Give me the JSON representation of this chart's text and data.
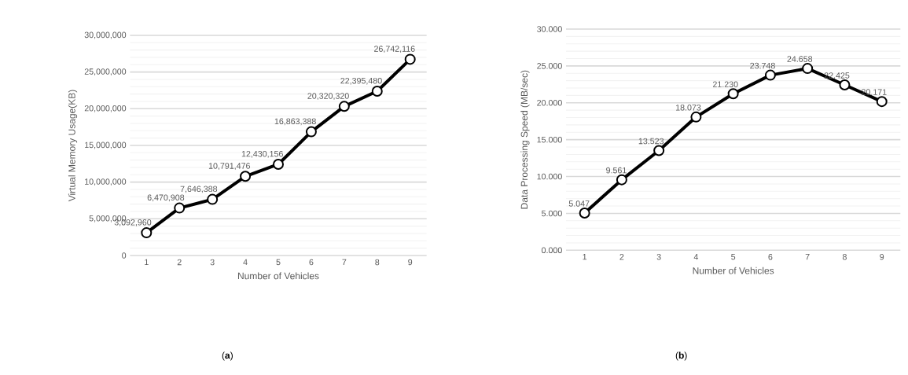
{
  "chart_data": [
    {
      "type": "line",
      "xlabel": "Number of Vehicles",
      "ylabel": "Virtual Memory Usage(KB)",
      "categories": [
        "1",
        "2",
        "3",
        "4",
        "5",
        "6",
        "7",
        "8",
        "9"
      ],
      "series": [
        {
          "color": "#000000",
          "values": [
            3092960,
            6470908,
            7646388,
            10791476,
            12430156,
            16863388,
            20320320,
            22395480,
            26742116
          ],
          "value_labels": [
            "3,092,960",
            "6,470,908",
            "7,646,388",
            "10,791,476",
            "12,430,156",
            "16,863,388",
            "20,320,320",
            "22,395,480",
            "26,742,116"
          ]
        }
      ],
      "ylim": [
        0,
        30000000
      ],
      "yticks": [
        0,
        {
          "value": 5000000,
          "label": "5,000,000"
        },
        {
          "value": 10000000,
          "label": "10,000,000"
        },
        {
          "value": 15000000,
          "label": "15,000,000"
        },
        {
          "value": 20000000,
          "label": "20,000,000"
        },
        {
          "value": 25000000,
          "label": "25,000,000"
        },
        {
          "value": 30000000,
          "label": "30,000,000"
        }
      ],
      "grid": "y",
      "marker": "circle",
      "line_style": "solid",
      "annotations": [
        "(**a**)"
      ]
    },
    {
      "type": "line",
      "xlabel": "Number of Vehicles",
      "ylabel": "Data Processing Speed (MB/sec)",
      "categories": [
        "1",
        "2",
        "3",
        "4",
        "5",
        "6",
        "7",
        "8",
        "9"
      ],
      "series": [
        {
          "color": "#000000",
          "values": [
            5.047,
            9.561,
            13.523,
            18.073,
            21.23,
            23.748,
            24.658,
            22.425,
            20.171
          ],
          "value_labels": [
            "5.047",
            "9.561",
            "13.523",
            "18.073",
            "21.230",
            "23.748",
            "24.658",
            "22.425",
            "20.171"
          ]
        }
      ],
      "ylim": [
        0,
        30
      ],
      "yticks": [
        {
          "value": 0,
          "label": "0.000"
        },
        {
          "value": 5,
          "label": "5.000"
        },
        {
          "value": 10,
          "label": "10.000"
        },
        {
          "value": 15,
          "label": "15.000"
        },
        {
          "value": 20,
          "label": "20.000"
        },
        {
          "value": 25,
          "label": "25.000"
        },
        {
          "value": 30,
          "label": "30.000"
        }
      ],
      "grid": "y",
      "marker": "circle",
      "line_style": "solid",
      "annotations": [
        "(**b**)"
      ]
    }
  ]
}
